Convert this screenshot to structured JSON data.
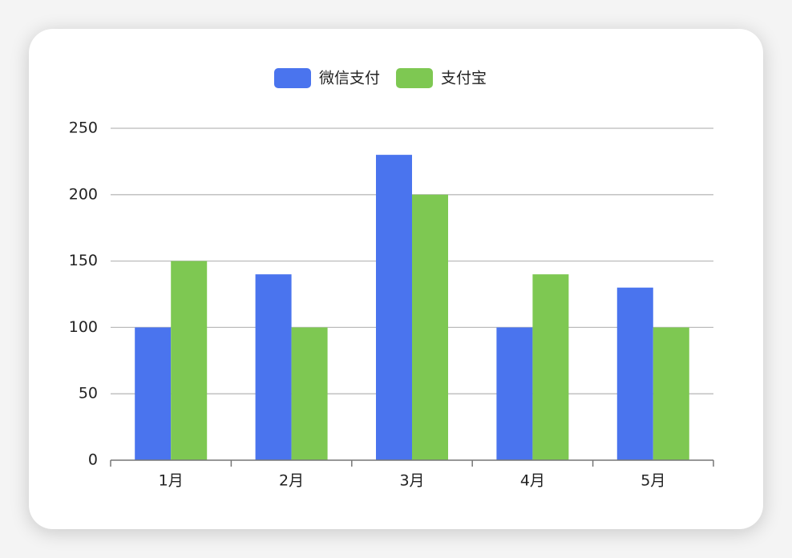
{
  "chart_data": {
    "type": "bar",
    "categories": [
      "1月",
      "2月",
      "3月",
      "4月",
      "5月"
    ],
    "series": [
      {
        "name": "微信支付",
        "color": "#4a74ee",
        "values": [
          100,
          140,
          230,
          100,
          130
        ]
      },
      {
        "name": "支付宝",
        "color": "#7ec852",
        "values": [
          150,
          100,
          200,
          140,
          100
        ]
      }
    ],
    "ylim": [
      0,
      250
    ],
    "yticks": [
      0,
      50,
      100,
      150,
      200,
      250
    ],
    "grid": true,
    "legend": "top"
  }
}
